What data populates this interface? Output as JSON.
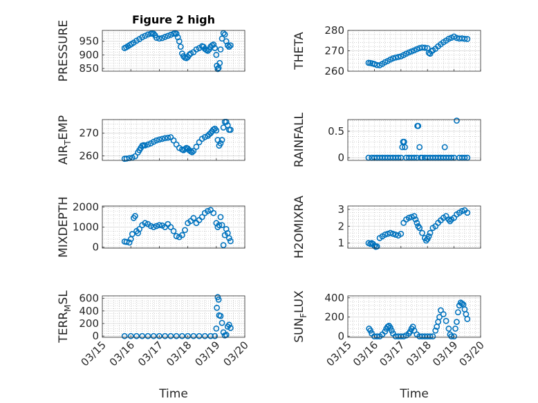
{
  "colors": {
    "marker": "#0072BD",
    "axis": "#262626",
    "grid": "#b0b0b0"
  },
  "chart_data": {
    "type": "scatter",
    "title": "Figure 2 high",
    "x_tick_labels": [
      "03/15",
      "03/16",
      "03/17",
      "03/18",
      "03/19",
      "03/20"
    ],
    "xlabel": "Time",
    "x_unit": "days from 03/15",
    "grid": true,
    "marker": "open-circle",
    "panels": [
      {
        "ylabel": "PRESSURE",
        "ylim": [
          840,
          990
        ],
        "yticks": [
          850,
          900,
          950
        ],
        "x": [
          0.78,
          0.84,
          0.9,
          0.96,
          1.02,
          1.1,
          1.2,
          1.3,
          1.4,
          1.5,
          1.6,
          1.7,
          1.75,
          1.8,
          1.85,
          1.9,
          2.0,
          2.1,
          2.2,
          2.3,
          2.4,
          2.5,
          2.55,
          2.6,
          2.65,
          2.7,
          2.75,
          2.8,
          2.85,
          2.9,
          2.95,
          3.0,
          3.05,
          3.1,
          3.2,
          3.3,
          3.4,
          3.5,
          3.55,
          3.6,
          3.65,
          3.7,
          3.75,
          3.8,
          3.85,
          3.9,
          3.95,
          4.0,
          4.02,
          4.05,
          4.08,
          4.12,
          4.15,
          4.2,
          4.25,
          4.3,
          4.35,
          4.4,
          4.45,
          4.5
        ],
        "y": [
          925,
          928,
          932,
          936,
          940,
          945,
          952,
          958,
          965,
          970,
          975,
          978,
          979,
          978,
          972,
          963,
          960,
          962,
          966,
          970,
          974,
          978,
          980,
          978,
          965,
          950,
          930,
          905,
          895,
          890,
          888,
          892,
          900,
          905,
          910,
          920,
          925,
          932,
          930,
          922,
          918,
          915,
          920,
          930,
          935,
          938,
          925,
          900,
          860,
          848,
          852,
          870,
          920,
          960,
          980,
          975,
          950,
          935,
          930,
          935
        ]
      },
      {
        "ylabel": "THETA",
        "ylim": [
          260,
          280
        ],
        "yticks": [
          260,
          270,
          280
        ],
        "x": [
          0.78,
          0.85,
          0.92,
          1.0,
          1.1,
          1.2,
          1.3,
          1.4,
          1.5,
          1.6,
          1.7,
          1.8,
          1.9,
          2.0,
          2.1,
          2.2,
          2.3,
          2.4,
          2.5,
          2.6,
          2.7,
          2.8,
          2.9,
          3.0,
          3.05,
          3.1,
          3.15,
          3.2,
          3.3,
          3.4,
          3.5,
          3.6,
          3.7,
          3.8,
          3.9,
          4.0,
          4.1,
          4.2,
          4.3,
          4.4,
          4.5
        ],
        "y": [
          264.1,
          264.0,
          263.8,
          263.5,
          263.0,
          262.9,
          263.6,
          264.4,
          265.0,
          265.7,
          266.3,
          266.7,
          267.0,
          267.3,
          267.9,
          268.6,
          269.2,
          269.7,
          270.2,
          270.8,
          271.3,
          271.6,
          271.5,
          271.3,
          269.0,
          268.6,
          269.8,
          270.2,
          271.0,
          272.2,
          273.2,
          274.2,
          275.0,
          275.9,
          276.4,
          277.0,
          276.3,
          276.0,
          276.1,
          275.9,
          275.8
        ]
      },
      {
        "ylabel": "AIR_TEMP",
        "ylim": [
          258,
          276
        ],
        "yticks": [
          260,
          270
        ],
        "x": [
          0.78,
          0.85,
          0.95,
          1.05,
          1.15,
          1.25,
          1.3,
          1.35,
          1.4,
          1.45,
          1.5,
          1.6,
          1.7,
          1.8,
          1.9,
          2.0,
          2.1,
          2.2,
          2.3,
          2.4,
          2.5,
          2.6,
          2.7,
          2.8,
          2.85,
          2.9,
          2.95,
          3.0,
          3.05,
          3.1,
          3.15,
          3.2,
          3.3,
          3.4,
          3.5,
          3.6,
          3.7,
          3.75,
          3.8,
          3.85,
          3.9,
          3.95,
          4.0,
          4.05,
          4.1,
          4.15,
          4.2,
          4.25,
          4.3,
          4.35,
          4.4,
          4.45,
          4.5
        ],
        "y": [
          258.7,
          258.8,
          259.0,
          259.2,
          259.8,
          261.5,
          262.5,
          263.5,
          264.5,
          264.7,
          264.6,
          265.0,
          265.5,
          266.2,
          266.8,
          267.2,
          267.5,
          267.8,
          268.0,
          268.2,
          266.8,
          265.0,
          263.5,
          262.8,
          262.5,
          263.0,
          263.5,
          263.2,
          262.5,
          262.0,
          261.6,
          262.2,
          264.0,
          266.0,
          267.5,
          268.3,
          268.8,
          269.5,
          270.0,
          270.8,
          271.6,
          272.0,
          271.2,
          267.0,
          264.5,
          265.5,
          267.0,
          272.5,
          275.0,
          275.0,
          273.5,
          271.5,
          271.5
        ]
      },
      {
        "ylabel": "RAINFALL",
        "ylim": [
          -0.05,
          0.72
        ],
        "yticks": [
          0,
          0.5
        ],
        "x": [
          0.78,
          0.9,
          1.0,
          1.1,
          1.2,
          1.3,
          1.4,
          1.5,
          1.6,
          1.7,
          1.8,
          1.9,
          2.0,
          2.05,
          2.08,
          2.12,
          2.15,
          2.2,
          2.3,
          2.4,
          2.5,
          2.6,
          2.62,
          2.65,
          2.7,
          2.75,
          2.8,
          2.9,
          3.0,
          3.1,
          3.2,
          3.3,
          3.4,
          3.5,
          3.6,
          3.65,
          3.7,
          3.8,
          3.9,
          4.0,
          4.1,
          4.2,
          4.3,
          4.4,
          4.5
        ],
        "y": [
          0,
          0,
          0,
          0,
          0,
          0,
          0,
          0,
          0,
          0,
          0,
          0,
          0,
          0.2,
          0.3,
          0.3,
          0.2,
          0,
          0,
          0,
          0,
          0,
          0.6,
          0.6,
          0.2,
          0,
          0,
          0,
          0,
          0,
          0,
          0,
          0,
          0,
          0,
          0.2,
          0,
          0,
          0,
          0,
          0.7,
          0,
          0,
          0,
          0
        ]
      },
      {
        "ylabel": "MIXDEPTH",
        "ylim": [
          -50,
          2050
        ],
        "yticks": [
          0,
          1000,
          2000
        ],
        "x": [
          0.78,
          0.85,
          0.95,
          1.0,
          1.05,
          1.1,
          1.15,
          1.2,
          1.25,
          1.3,
          1.4,
          1.5,
          1.6,
          1.7,
          1.8,
          1.9,
          2.0,
          2.1,
          2.2,
          2.3,
          2.4,
          2.5,
          2.6,
          2.7,
          2.8,
          2.9,
          3.0,
          3.1,
          3.2,
          3.3,
          3.4,
          3.5,
          3.6,
          3.7,
          3.8,
          3.9,
          4.0,
          4.05,
          4.1,
          4.15,
          4.2,
          4.25,
          4.3,
          4.35,
          4.4,
          4.45,
          4.5
        ],
        "y": [
          280,
          260,
          230,
          400,
          650,
          1450,
          1550,
          800,
          700,
          900,
          1100,
          1200,
          1150,
          1050,
          1000,
          1050,
          1100,
          1080,
          1000,
          1150,
          1000,
          800,
          550,
          500,
          600,
          850,
          1200,
          1300,
          1450,
          1200,
          1350,
          1500,
          1700,
          1800,
          1850,
          1700,
          1200,
          1000,
          1100,
          1500,
          1100,
          100,
          600,
          900,
          700,
          450,
          300
        ]
      },
      {
        "ylabel": "H2OMIXRA",
        "ylim": [
          0.7,
          3.2
        ],
        "yticks": [
          1,
          2,
          3
        ],
        "x": [
          0.78,
          0.85,
          0.9,
          0.95,
          1.0,
          1.05,
          1.1,
          1.2,
          1.3,
          1.4,
          1.5,
          1.6,
          1.7,
          1.8,
          1.9,
          2.0,
          2.1,
          2.2,
          2.3,
          2.4,
          2.5,
          2.55,
          2.6,
          2.65,
          2.7,
          2.8,
          2.9,
          2.95,
          3.0,
          3.05,
          3.1,
          3.2,
          3.3,
          3.4,
          3.5,
          3.6,
          3.7,
          3.8,
          3.85,
          3.9,
          4.0,
          4.1,
          4.2,
          4.3,
          4.4,
          4.5
        ],
        "y": [
          1.0,
          0.95,
          1.0,
          0.95,
          0.85,
          0.78,
          0.8,
          1.3,
          1.4,
          1.5,
          1.55,
          1.6,
          1.55,
          1.5,
          1.45,
          1.55,
          2.2,
          2.4,
          2.5,
          2.55,
          2.6,
          2.4,
          2.2,
          2.0,
          1.9,
          1.6,
          1.3,
          1.15,
          1.25,
          1.4,
          1.6,
          1.9,
          2.0,
          2.2,
          2.35,
          2.5,
          2.6,
          2.4,
          2.3,
          2.4,
          2.5,
          2.7,
          2.8,
          2.9,
          2.95,
          2.8
        ]
      },
      {
        "ylabel": "TERR_MSL",
        "ylim": [
          -20,
          640
        ],
        "yticks": [
          0,
          200,
          400,
          600
        ],
        "x": [
          0.78,
          1.0,
          1.2,
          1.4,
          1.6,
          1.8,
          2.0,
          2.2,
          2.4,
          2.6,
          2.8,
          3.0,
          3.2,
          3.4,
          3.6,
          3.8,
          3.95,
          4.0,
          4.02,
          4.05,
          4.08,
          4.1,
          4.15,
          4.2,
          4.25,
          4.3,
          4.35,
          4.4,
          4.45,
          4.5
        ],
        "y": [
          0,
          0,
          0,
          0,
          0,
          0,
          0,
          0,
          0,
          0,
          0,
          0,
          0,
          0,
          0,
          0,
          0,
          120,
          450,
          620,
          580,
          330,
          320,
          210,
          60,
          10,
          20,
          150,
          180,
          130
        ]
      },
      {
        "ylabel": "SUN_FLUX",
        "ylim": [
          -10,
          420
        ],
        "yticks": [
          0,
          200,
          400
        ],
        "x": [
          0.8,
          0.85,
          0.9,
          1.0,
          1.1,
          1.2,
          1.3,
          1.4,
          1.45,
          1.5,
          1.55,
          1.6,
          1.65,
          1.7,
          1.8,
          1.9,
          2.0,
          2.1,
          2.2,
          2.3,
          2.35,
          2.4,
          2.45,
          2.5,
          2.6,
          2.7,
          2.8,
          2.9,
          3.0,
          3.1,
          3.2,
          3.3,
          3.35,
          3.4,
          3.45,
          3.5,
          3.6,
          3.7,
          3.8,
          3.85,
          3.9,
          4.0,
          4.05,
          4.1,
          4.15,
          4.2,
          4.25,
          4.3,
          4.35,
          4.4,
          4.45,
          4.5
        ],
        "y": [
          80,
          60,
          30,
          0,
          0,
          0,
          20,
          50,
          80,
          100,
          110,
          90,
          60,
          30,
          0,
          0,
          0,
          0,
          10,
          30,
          50,
          80,
          100,
          60,
          20,
          0,
          0,
          0,
          0,
          0,
          0,
          60,
          100,
          150,
          200,
          270,
          230,
          160,
          80,
          20,
          0,
          0,
          80,
          150,
          250,
          320,
          350,
          340,
          330,
          280,
          230,
          180
        ]
      }
    ]
  }
}
